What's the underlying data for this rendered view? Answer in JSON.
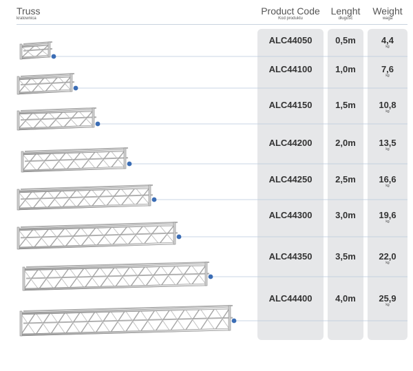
{
  "header": {
    "truss": "Truss",
    "truss_sub": "kratownica",
    "code": "Product Code",
    "code_sub": "Kod produktu",
    "length": "Lenght",
    "length_sub": "długość",
    "weight": "Weight",
    "weight_sub": "waga"
  },
  "colors": {
    "line": "#b8c8db",
    "dot": "#3b6db5",
    "column_bg": "#e6e7e9"
  },
  "rows": [
    {
      "code": "ALC44050",
      "length": "0,5m",
      "weight": "4,4",
      "unit": "kg"
    },
    {
      "code": "ALC44100",
      "length": "1,0m",
      "weight": "7,6",
      "unit": "kg"
    },
    {
      "code": "ALC44150",
      "length": "1,5m",
      "weight": "10,8",
      "unit": "kg"
    },
    {
      "code": "ALC44200",
      "length": "2,0m",
      "weight": "13,5",
      "unit": "kg"
    },
    {
      "code": "ALC44250",
      "length": "2,5m",
      "weight": "16,6",
      "unit": "kg"
    },
    {
      "code": "ALC44300",
      "length": "3,0m",
      "weight": "19,6",
      "unit": "kg"
    },
    {
      "code": "ALC44350",
      "length": "3,5m",
      "weight": "22,0",
      "unit": "kg"
    },
    {
      "code": "ALC44400",
      "length": "4,0m",
      "weight": "25,9",
      "unit": "kg"
    }
  ]
}
